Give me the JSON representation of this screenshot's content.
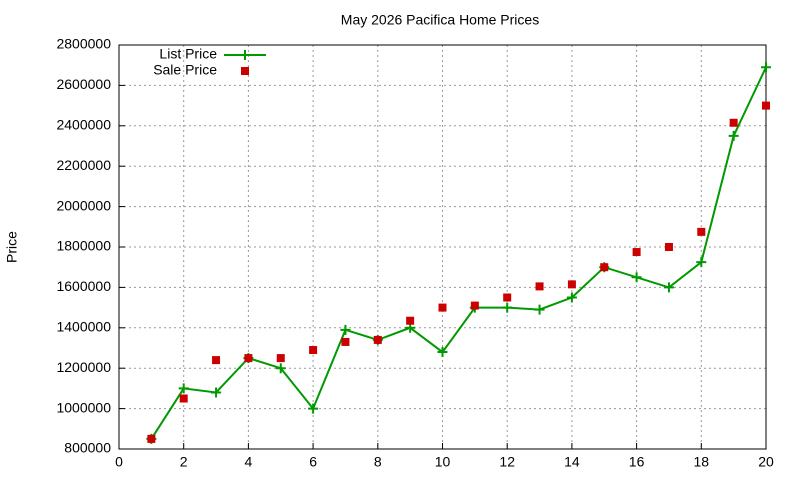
{
  "chart_data": {
    "type": "line",
    "title": "May 2026 Pacifica Home Prices",
    "ylabel": "Price",
    "x": [
      1,
      2,
      3,
      4,
      5,
      6,
      7,
      8,
      9,
      10,
      11,
      12,
      13,
      14,
      15,
      16,
      17,
      18,
      19,
      20
    ],
    "series": [
      {
        "name": "List Price",
        "color": "#009900",
        "mode": "linespoints",
        "values": [
          850000,
          1100000,
          1080000,
          1250000,
          1200000,
          1000000,
          1390000,
          1340000,
          1400000,
          1280000,
          1500000,
          1500000,
          1490000,
          1550000,
          1700000,
          1650000,
          1600000,
          1725000,
          2350000,
          2690000
        ]
      },
      {
        "name": "Sale Price",
        "color": "#cc0000",
        "mode": "points",
        "values": [
          850000,
          1050000,
          1240000,
          1250000,
          1250000,
          1290000,
          1330000,
          1340000,
          1435000,
          1500000,
          1510000,
          1550000,
          1605000,
          1615000,
          1700000,
          1775000,
          1800000,
          1875000,
          2415000,
          2500000
        ]
      }
    ],
    "xlim": [
      0,
      20
    ],
    "xticks": [
      0,
      2,
      4,
      6,
      8,
      10,
      12,
      14,
      16,
      18,
      20
    ],
    "ylim": [
      800000,
      2800000
    ],
    "yticks": [
      800000,
      1000000,
      1200000,
      1400000,
      1600000,
      1800000,
      2000000,
      2200000,
      2400000,
      2600000,
      2800000
    ],
    "grid": true,
    "legend": "top-left"
  }
}
